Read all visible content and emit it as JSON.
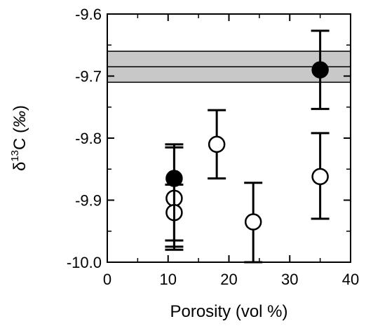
{
  "chart_data": {
    "type": "scatter",
    "xlabel": "Porosity (vol %)",
    "ylabel_main": "δ",
    "ylabel_sup": "13",
    "ylabel_after": "C (",
    "ylabel_unit": "‰",
    "ylabel_close": ")",
    "xlim": [
      0,
      40
    ],
    "ylim": [
      -10.0,
      -9.6
    ],
    "x_ticks": [
      0,
      10,
      20,
      30,
      40
    ],
    "x_tick_labels": [
      "0",
      "10",
      "20",
      "30",
      "40"
    ],
    "y_ticks": [
      -10.0,
      -9.9,
      -9.8,
      -9.7,
      -9.6
    ],
    "y_tick_labels": [
      "-10.0",
      "-9.9",
      "-9.8",
      "-9.7",
      "-9.6"
    ],
    "band": {
      "center": -9.685,
      "low": -9.71,
      "high": -9.66,
      "color": "#c8c8c8"
    },
    "series": [
      {
        "style": "filled",
        "points": [
          {
            "x": 11,
            "y": -9.865,
            "err_low": -9.975,
            "err_high": -9.81
          },
          {
            "x": 35,
            "y": -9.69,
            "err_low": -9.753,
            "err_high": -9.627
          }
        ]
      },
      {
        "style": "open",
        "points": [
          {
            "x": 11,
            "y": -9.897,
            "err_low": -9.98,
            "err_high": -9.815
          },
          {
            "x": 11,
            "y": -9.92,
            "err_low": -9.965,
            "err_high": -9.875
          },
          {
            "x": 18,
            "y": -9.81,
            "err_low": -9.865,
            "err_high": -9.755
          },
          {
            "x": 24,
            "y": -9.935,
            "err_low": -10.0,
            "err_high": -9.872
          },
          {
            "x": 35,
            "y": -9.862,
            "err_low": -9.93,
            "err_high": -9.792
          }
        ]
      }
    ],
    "grid": false,
    "legend": "none"
  }
}
